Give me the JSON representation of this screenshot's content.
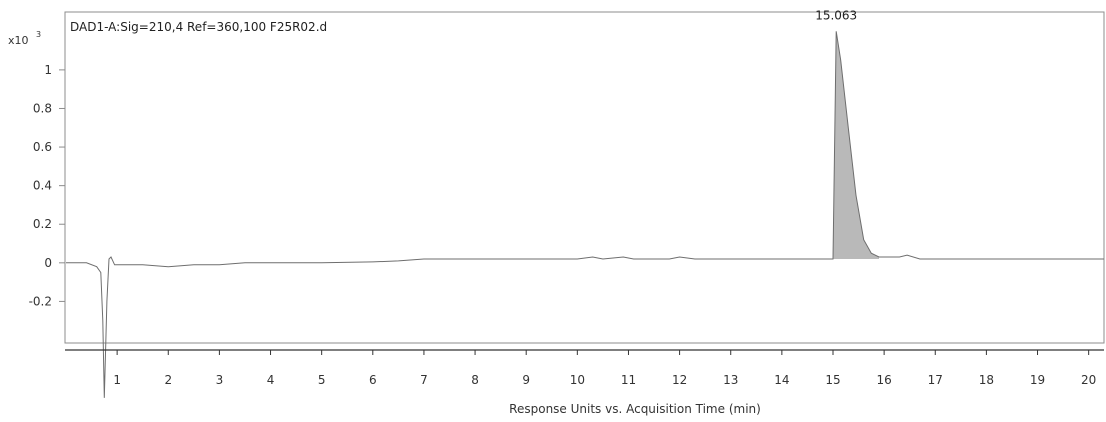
{
  "chart_data": {
    "type": "line",
    "title": "DAD1-A:Sig=210,4 Ref=360,100 F25R02.d",
    "xlabel": "Response Units vs. Acquisition Time (min)",
    "y_scale_label": "x10",
    "y_scale_exponent": "3",
    "xlim": [
      0,
      20.3
    ],
    "ylim": [
      -0.4,
      1.3
    ],
    "x_ticks": [
      1,
      2,
      3,
      4,
      5,
      6,
      7,
      8,
      9,
      10,
      11,
      12,
      13,
      14,
      15,
      16,
      17,
      18,
      19,
      20
    ],
    "y_ticks": [
      -0.2,
      0,
      0.2,
      0.4,
      0.6,
      0.8,
      1
    ],
    "y_tick_labels": [
      "-0.2",
      "0",
      "0.2",
      "0.4",
      "0.6",
      "0.8",
      "1"
    ],
    "series": [
      {
        "x": [
          0,
          0.4,
          0.6,
          0.68,
          0.72,
          0.75,
          0.8,
          0.84,
          0.88,
          0.95,
          1.1,
          1.5,
          2.0,
          2.5,
          3.0,
          3.5,
          4.0,
          5.0,
          6.0,
          6.5,
          7.0,
          7.5,
          8.0,
          9.0,
          10.0,
          10.3,
          10.5,
          10.7,
          10.9,
          11.1,
          11.5,
          11.8,
          12.0,
          12.3,
          12.8,
          13.5,
          14.0,
          14.5,
          14.9,
          15.0,
          15.063,
          15.15,
          15.3,
          15.45,
          15.6,
          15.75,
          15.9,
          16.1,
          16.3,
          16.45,
          16.7,
          17.0,
          18.0,
          19.0,
          20.0,
          20.3
        ],
        "y": [
          0,
          0,
          -0.02,
          -0.05,
          -0.3,
          -0.7,
          -0.2,
          0.02,
          0.03,
          -0.01,
          -0.01,
          -0.01,
          -0.02,
          -0.01,
          -0.01,
          0,
          0,
          0,
          0.005,
          0.01,
          0.02,
          0.02,
          0.02,
          0.02,
          0.02,
          0.03,
          0.02,
          0.025,
          0.03,
          0.02,
          0.02,
          0.02,
          0.03,
          0.02,
          0.02,
          0.02,
          0.02,
          0.02,
          0.02,
          0.02,
          1.2,
          1.05,
          0.7,
          0.35,
          0.12,
          0.05,
          0.03,
          0.03,
          0.03,
          0.04,
          0.02,
          0.02,
          0.02,
          0.02,
          0.02,
          0.02
        ]
      }
    ],
    "peaks": [
      {
        "label": "15.063",
        "rt": 15.063,
        "start": 14.9,
        "end": 16.0
      }
    ],
    "grid": false,
    "legend": "none"
  }
}
